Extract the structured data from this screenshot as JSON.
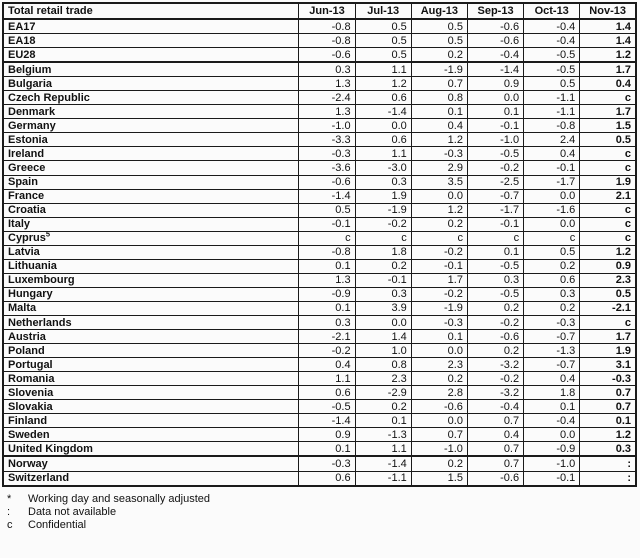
{
  "table": {
    "title": "Total retail trade",
    "months": [
      "Jun-13",
      "Jul-13",
      "Aug-13",
      "Sep-13",
      "Oct-13",
      "Nov-13"
    ],
    "rows": [
      {
        "name": "EA17",
        "sup": "",
        "values": [
          "-0.8",
          "0.5",
          "0.5",
          "-0.6",
          "-0.4",
          "1.4"
        ],
        "thick_bottom": false
      },
      {
        "name": "EA18",
        "sup": "",
        "values": [
          "-0.8",
          "0.5",
          "0.5",
          "-0.6",
          "-0.4",
          "1.4"
        ],
        "thick_bottom": false
      },
      {
        "name": "EU28",
        "sup": "",
        "values": [
          "-0.6",
          "0.5",
          "0.2",
          "-0.4",
          "-0.5",
          "1.2"
        ],
        "thick_bottom": true
      },
      {
        "name": "Belgium",
        "sup": "",
        "values": [
          "0.3",
          "1.1",
          "-1.9",
          "-1.4",
          "-0.5",
          "1.7"
        ],
        "thick_bottom": false
      },
      {
        "name": "Bulgaria",
        "sup": "",
        "values": [
          "1.3",
          "1.2",
          "0.7",
          "0.9",
          "0.5",
          "0.4"
        ],
        "thick_bottom": false
      },
      {
        "name": "Czech Republic",
        "sup": "",
        "values": [
          "-2.4",
          "0.6",
          "0.8",
          "0.0",
          "-1.1",
          "c"
        ],
        "thick_bottom": false
      },
      {
        "name": "Denmark",
        "sup": "",
        "values": [
          "1.3",
          "-1.4",
          "0.1",
          "0.1",
          "-1.1",
          "1.7"
        ],
        "thick_bottom": false
      },
      {
        "name": "Germany",
        "sup": "",
        "values": [
          "-1.0",
          "0.0",
          "0.4",
          "-0.1",
          "-0.8",
          "1.5"
        ],
        "thick_bottom": false
      },
      {
        "name": "Estonia",
        "sup": "",
        "values": [
          "-3.3",
          "0.6",
          "1.2",
          "-1.0",
          "2.4",
          "0.5"
        ],
        "thick_bottom": false
      },
      {
        "name": "Ireland",
        "sup": "",
        "values": [
          "-0.3",
          "1.1",
          "-0.3",
          "-0.5",
          "0.4",
          "c"
        ],
        "thick_bottom": false
      },
      {
        "name": "Greece",
        "sup": "",
        "values": [
          "-3.6",
          "-3.0",
          "2.9",
          "-0.2",
          "-0.1",
          "c"
        ],
        "thick_bottom": false
      },
      {
        "name": "Spain",
        "sup": "",
        "values": [
          "-0.6",
          "0.3",
          "3.5",
          "-2.5",
          "-1.7",
          "1.9"
        ],
        "thick_bottom": false
      },
      {
        "name": "France",
        "sup": "",
        "values": [
          "-1.4",
          "1.9",
          "0.0",
          "-0.7",
          "0.0",
          "2.1"
        ],
        "thick_bottom": false
      },
      {
        "name": "Croatia",
        "sup": "",
        "values": [
          "0.5",
          "-1.9",
          "1.2",
          "-1.7",
          "-1.6",
          "c"
        ],
        "thick_bottom": false
      },
      {
        "name": "Italy",
        "sup": "",
        "values": [
          "-0.1",
          "-0.2",
          "0.2",
          "-0.1",
          "0.0",
          "c"
        ],
        "thick_bottom": false
      },
      {
        "name": "Cyprus",
        "sup": "5",
        "values": [
          "c",
          "c",
          "c",
          "c",
          "c",
          "c"
        ],
        "thick_bottom": false
      },
      {
        "name": "Latvia",
        "sup": "",
        "values": [
          "-0.8",
          "1.8",
          "-0.2",
          "0.1",
          "0.5",
          "1.2"
        ],
        "thick_bottom": false
      },
      {
        "name": "Lithuania",
        "sup": "",
        "values": [
          "0.1",
          "0.2",
          "-0.1",
          "-0.5",
          "0.2",
          "0.9"
        ],
        "thick_bottom": false
      },
      {
        "name": "Luxembourg",
        "sup": "",
        "values": [
          "1.3",
          "-0.1",
          "1.7",
          "0.3",
          "0.6",
          "2.3"
        ],
        "thick_bottom": false
      },
      {
        "name": "Hungary",
        "sup": "",
        "values": [
          "-0.9",
          "0.3",
          "-0.2",
          "-0.5",
          "0.3",
          "0.5"
        ],
        "thick_bottom": false
      },
      {
        "name": "Malta",
        "sup": "",
        "values": [
          "0.1",
          "3.9",
          "-1.9",
          "0.2",
          "0.2",
          "-2.1"
        ],
        "thick_bottom": false
      },
      {
        "name": "Netherlands",
        "sup": "",
        "values": [
          "0.3",
          "0.0",
          "-0.3",
          "-0.2",
          "-0.3",
          "c"
        ],
        "thick_bottom": false
      },
      {
        "name": "Austria",
        "sup": "",
        "values": [
          "-2.1",
          "1.4",
          "0.1",
          "-0.6",
          "-0.7",
          "1.7"
        ],
        "thick_bottom": false
      },
      {
        "name": "Poland",
        "sup": "",
        "values": [
          "-0.2",
          "1.0",
          "0.0",
          "0.2",
          "-1.3",
          "1.9"
        ],
        "thick_bottom": false
      },
      {
        "name": "Portugal",
        "sup": "",
        "values": [
          "0.4",
          "0.8",
          "2.3",
          "-3.2",
          "-0.7",
          "3.1"
        ],
        "thick_bottom": false
      },
      {
        "name": "Romania",
        "sup": "",
        "values": [
          "1.1",
          "2.3",
          "0.2",
          "-0.2",
          "0.4",
          "-0.3"
        ],
        "thick_bottom": false
      },
      {
        "name": "Slovenia",
        "sup": "",
        "values": [
          "0.6",
          "-2.9",
          "2.8",
          "-3.2",
          "1.8",
          "0.7"
        ],
        "thick_bottom": false
      },
      {
        "name": "Slovakia",
        "sup": "",
        "values": [
          "-0.5",
          "0.2",
          "-0.6",
          "-0.4",
          "0.1",
          "0.7"
        ],
        "thick_bottom": false
      },
      {
        "name": "Finland",
        "sup": "",
        "values": [
          "-1.4",
          "0.1",
          "0.0",
          "0.7",
          "-0.4",
          "0.1"
        ],
        "thick_bottom": false
      },
      {
        "name": "Sweden",
        "sup": "",
        "values": [
          "0.9",
          "-1.3",
          "0.7",
          "0.4",
          "0.0",
          "1.2"
        ],
        "thick_bottom": false
      },
      {
        "name": "United Kingdom",
        "sup": "",
        "values": [
          "0.1",
          "1.1",
          "-1.0",
          "0.7",
          "-0.9",
          "0.3"
        ],
        "thick_bottom": true
      },
      {
        "name": "Norway",
        "sup": "",
        "values": [
          "-0.3",
          "-1.4",
          "0.2",
          "0.7",
          "-1.0",
          ":"
        ],
        "thick_bottom": false
      },
      {
        "name": "Switzerland",
        "sup": "",
        "values": [
          "0.6",
          "-1.1",
          "1.5",
          "-0.6",
          "-0.1",
          ":"
        ],
        "thick_bottom": false
      }
    ]
  },
  "footnotes": [
    {
      "marker": "*",
      "text": "Working day and seasonally adjusted"
    },
    {
      "marker": ":",
      "text": "Data not available"
    },
    {
      "marker": "c",
      "text": "Confidential"
    }
  ],
  "colors": {
    "border": "#1a1a1a",
    "text": "#111111",
    "background": "#fbfbfb"
  }
}
